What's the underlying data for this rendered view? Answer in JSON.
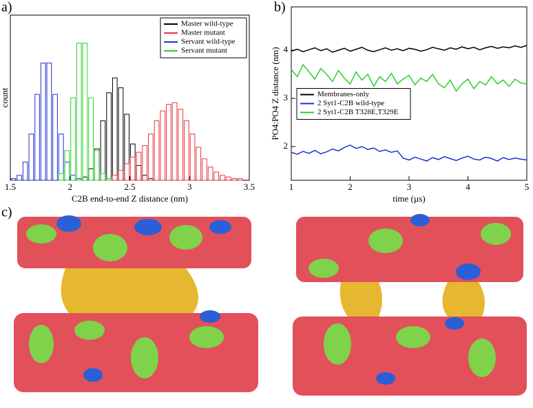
{
  "chart_data": [
    {
      "type": "histogram",
      "label": "a)",
      "xlabel": "C2B end-to-end Z distance (nm)",
      "ylabel": "count",
      "bins": [
        1.5,
        1.55,
        1.6,
        1.65,
        1.7,
        1.75,
        1.8,
        1.85,
        1.9,
        1.95,
        2,
        2.05,
        2.1,
        2.15,
        2.2,
        2.25,
        2.3,
        2.35,
        2.4,
        2.45,
        2.5,
        2.55,
        2.6,
        2.65,
        2.7,
        2.75,
        2.8,
        2.85,
        2.9,
        2.95,
        3,
        3.05,
        3.1,
        3.15,
        3.2,
        3.25,
        3.3,
        3.35,
        3.4,
        3.45,
        3.5
      ],
      "series": [
        {
          "name": "Master wild-type",
          "color": "#000000",
          "values": [
            0,
            0,
            0,
            0,
            0,
            0,
            0,
            0,
            0,
            0,
            0,
            1,
            2,
            7,
            19,
            36,
            53,
            62,
            56,
            40,
            22,
            9,
            3,
            1,
            0,
            0,
            0,
            0,
            0,
            0,
            0,
            0,
            0,
            0,
            0,
            0,
            0,
            0,
            0,
            0
          ]
        },
        {
          "name": "Master mutant",
          "color": "#e8343c",
          "values": [
            0,
            0,
            0,
            0,
            0,
            0,
            0,
            0,
            0,
            0,
            0,
            0,
            0,
            0,
            0,
            0,
            1,
            3,
            6,
            10,
            14,
            17,
            21,
            28,
            36,
            42,
            46,
            47,
            43,
            36,
            28,
            20,
            13,
            8,
            5,
            3,
            2,
            1,
            1,
            0
          ]
        },
        {
          "name": "Servant wild-type",
          "color": "#1c2fd0",
          "values": [
            1,
            3,
            11,
            28,
            52,
            71,
            71,
            52,
            28,
            11,
            3,
            1,
            0,
            0,
            0,
            0,
            0,
            0,
            0,
            0,
            0,
            0,
            0,
            0,
            0,
            0,
            0,
            0,
            0,
            0,
            0,
            0,
            0,
            0,
            0,
            0,
            0,
            0,
            0,
            0
          ]
        },
        {
          "name": "Servant mutant",
          "color": "#2ecc2e",
          "values": [
            0,
            0,
            0,
            0,
            0,
            0,
            0,
            0,
            4,
            18,
            50,
            83,
            83,
            50,
            18,
            4,
            1,
            0,
            0,
            0,
            0,
            0,
            0,
            0,
            0,
            0,
            0,
            0,
            0,
            0,
            0,
            0,
            0,
            0,
            0,
            0,
            0,
            0,
            0,
            0
          ]
        }
      ],
      "xlim": [
        1.5,
        3.5
      ],
      "xticks": [
        1.5,
        2,
        2.5,
        3,
        3.5
      ],
      "ylim": [
        0,
        100
      ],
      "legend": "upper-right"
    },
    {
      "type": "line",
      "label": "b)",
      "xlabel": "time (µs)",
      "ylabel": "PO4:PO4 Z distance (nm)",
      "x": [
        1,
        1.1,
        1.2,
        1.3,
        1.4,
        1.5,
        1.6,
        1.7,
        1.8,
        1.9,
        2,
        2.1,
        2.2,
        2.3,
        2.4,
        2.5,
        2.6,
        2.7,
        2.8,
        2.9,
        3,
        3.1,
        3.2,
        3.3,
        3.4,
        3.5,
        3.6,
        3.7,
        3.8,
        3.9,
        4,
        4.1,
        4.2,
        4.3,
        4.4,
        4.5,
        4.6,
        4.7,
        4.8,
        4.9,
        5
      ],
      "series": [
        {
          "name": "Membranes-only",
          "color": "#000000",
          "values": [
            3.98,
            4.02,
            3.97,
            4.01,
            4.05,
            3.99,
            4.03,
            3.96,
            4.0,
            4.04,
            3.98,
            4.02,
            4.06,
            4.0,
            3.97,
            4.01,
            4.05,
            4.0,
            4.03,
            3.99,
            4.04,
            4.02,
            3.98,
            4.01,
            4.06,
            4.03,
            4.0,
            4.05,
            4.02,
            4.07,
            4.03,
            4.06,
            4.01,
            4.05,
            4.08,
            4.04,
            4.07,
            4.05,
            4.09,
            4.06,
            4.1
          ]
        },
        {
          "name": "2 Syt1-C2B wild-type",
          "color": "#1c2fd0",
          "values": [
            1.88,
            1.84,
            1.9,
            1.86,
            1.92,
            1.85,
            1.89,
            1.95,
            1.91,
            1.98,
            2.03,
            1.96,
            2.0,
            1.94,
            1.97,
            1.9,
            1.93,
            1.88,
            1.91,
            1.76,
            1.72,
            1.78,
            1.74,
            1.7,
            1.77,
            1.73,
            1.79,
            1.75,
            1.71,
            1.76,
            1.8,
            1.74,
            1.72,
            1.78,
            1.75,
            1.7,
            1.77,
            1.73,
            1.76,
            1.74,
            1.72
          ]
        },
        {
          "name": "2 Syt1-C2B T328E,T329E",
          "color": "#2ecc2e",
          "values": [
            3.6,
            3.45,
            3.7,
            3.55,
            3.4,
            3.62,
            3.5,
            3.35,
            3.58,
            3.42,
            3.3,
            3.55,
            3.38,
            3.5,
            3.25,
            3.45,
            3.35,
            3.52,
            3.3,
            3.4,
            3.48,
            3.28,
            3.42,
            3.35,
            3.5,
            3.3,
            3.22,
            3.38,
            3.15,
            3.3,
            3.4,
            3.2,
            3.35,
            3.28,
            3.45,
            3.3,
            3.38,
            3.25,
            3.4,
            3.32,
            3.3
          ]
        }
      ],
      "xlim": [
        1,
        5
      ],
      "xticks": [
        1,
        2,
        3,
        4,
        5
      ],
      "ylim": [
        1.3,
        4.9
      ],
      "yticks": [
        2,
        3,
        4
      ],
      "legend": "center-left"
    }
  ],
  "panel_c": {
    "label": "c)"
  }
}
